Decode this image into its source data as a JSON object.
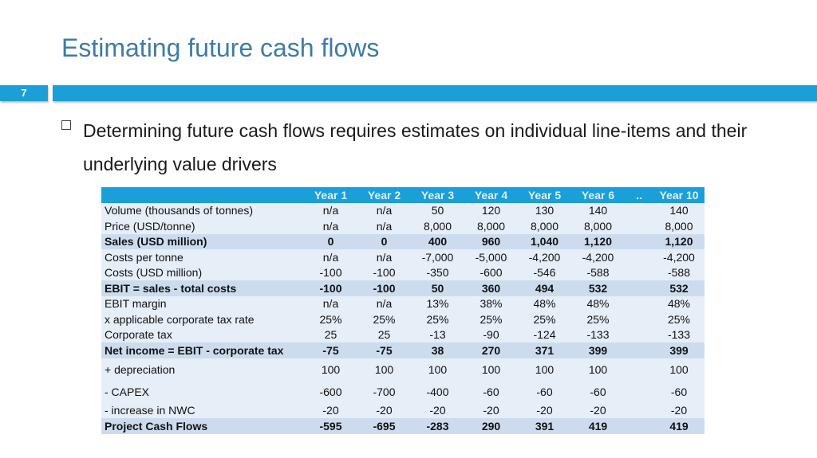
{
  "slide": {
    "title": "Estimating future cash flows",
    "number": "7",
    "bullet": "Determining future cash flows requires estimates on individual line-items and their underlying value drivers"
  },
  "table": {
    "headers": [
      "",
      "Year 1",
      "Year 2",
      "Year 3",
      "Year 4",
      "Year 5",
      "Year 6",
      "..",
      "Year 10"
    ],
    "rows": [
      {
        "label": "Volume (thousands of tonnes)",
        "bold": false,
        "values": [
          "n/a",
          "n/a",
          "50",
          "120",
          "130",
          "140",
          "",
          "140"
        ]
      },
      {
        "label": "Price (USD/tonne)",
        "bold": false,
        "values": [
          "n/a",
          "n/a",
          "8,000",
          "8,000",
          "8,000",
          "8,000",
          "",
          "8,000"
        ]
      },
      {
        "label": "Sales (USD million)",
        "bold": true,
        "values": [
          "0",
          "0",
          "400",
          "960",
          "1,040",
          "1,120",
          "",
          "1,120"
        ]
      },
      {
        "label": "Costs per tonne",
        "bold": false,
        "values": [
          "n/a",
          "n/a",
          "-7,000",
          "-5,000",
          "-4,200",
          "-4,200",
          "",
          "-4,200"
        ]
      },
      {
        "label": "Costs (USD million)",
        "bold": false,
        "values": [
          "-100",
          "-100",
          "-350",
          "-600",
          "-546",
          "-588",
          "",
          "-588"
        ]
      },
      {
        "label": "EBIT = sales - total costs",
        "bold": true,
        "values": [
          "-100",
          "-100",
          "50",
          "360",
          "494",
          "532",
          "",
          "532"
        ]
      },
      {
        "label": "EBIT margin",
        "bold": false,
        "values": [
          "n/a",
          "n/a",
          "13%",
          "38%",
          "48%",
          "48%",
          "",
          "48%"
        ]
      },
      {
        "label": "x applicable corporate tax rate",
        "bold": false,
        "values": [
          "25%",
          "25%",
          "25%",
          "25%",
          "25%",
          "25%",
          "",
          "25%"
        ]
      },
      {
        "label": "Corporate tax",
        "bold": false,
        "values": [
          "25",
          "25",
          "-13",
          "-90",
          "-124",
          "-133",
          "",
          "-133"
        ]
      },
      {
        "label": "Net income = EBIT - corporate tax",
        "bold": true,
        "values": [
          "-75",
          "-75",
          "38",
          "270",
          "371",
          "399",
          "",
          "399"
        ]
      },
      {
        "label": "+ depreciation",
        "bold": false,
        "tall": true,
        "values": [
          "100",
          "100",
          "100",
          "100",
          "100",
          "100",
          "",
          "100"
        ]
      },
      {
        "label": "- CAPEX",
        "bold": false,
        "tall": true,
        "values": [
          "-600",
          "-700",
          "-400",
          "-60",
          "-60",
          "-60",
          "",
          "-60"
        ]
      },
      {
        "label": "- increase in NWC",
        "bold": false,
        "values": [
          "-20",
          "-20",
          "-20",
          "-20",
          "-20",
          "-20",
          "",
          "-20"
        ]
      },
      {
        "label": "Project Cash Flows",
        "bold": true,
        "values": [
          "-595",
          "-695",
          "-283",
          "290",
          "391",
          "419",
          "",
          "419"
        ]
      }
    ]
  }
}
